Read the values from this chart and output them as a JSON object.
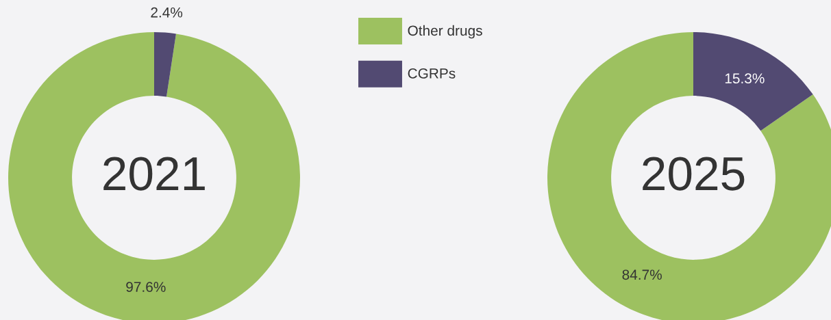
{
  "chart_data": [
    {
      "type": "donut",
      "categories": [
        "Other drugs",
        "CGRPs"
      ],
      "values": [
        97.6,
        2.4
      ],
      "colors": [
        "#9dc160",
        "#524a72"
      ],
      "value_labels": [
        "97.6%",
        "2.4%"
      ],
      "annotations": [
        "2021"
      ],
      "legend": "right"
    },
    {
      "type": "donut",
      "categories": [
        null,
        null
      ],
      "values": [
        84.7,
        15.3
      ],
      "colors": [
        "#9dc160",
        "#524a72"
      ],
      "value_labels": [
        "84.7%",
        "15.3%"
      ],
      "annotations": [
        "2025"
      ]
    }
  ]
}
